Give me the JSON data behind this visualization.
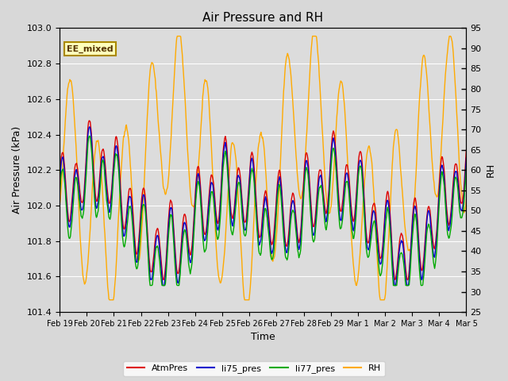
{
  "title": "Air Pressure and RH",
  "xlabel": "Time",
  "ylabel_left": "Air Pressure (kPa)",
  "ylabel_right": "RH",
  "ylim_left": [
    101.4,
    103.0
  ],
  "ylim_right": [
    25,
    95
  ],
  "yticks_left": [
    101.4,
    101.6,
    101.8,
    102.0,
    102.2,
    102.4,
    102.6,
    102.8,
    103.0
  ],
  "yticks_right": [
    25,
    30,
    35,
    40,
    45,
    50,
    55,
    60,
    65,
    70,
    75,
    80,
    85,
    90,
    95
  ],
  "xtick_labels": [
    "Feb 19",
    "Feb 20",
    "Feb 21",
    "Feb 22",
    "Feb 23",
    "Feb 24",
    "Feb 25",
    "Feb 26",
    "Feb 27",
    "Feb 28",
    "Feb 29",
    "Mar 1",
    "Mar 2",
    "Mar 3",
    "Mar 4",
    "Mar 5"
  ],
  "colors": {
    "AtmPres": "#dd0000",
    "li75_pres": "#0000cc",
    "li77_pres": "#00aa00",
    "RH": "#ffaa00"
  },
  "legend_label": "EE_mixed",
  "fig_bg": "#d8d8d8",
  "plot_bg": "#dcdcdc",
  "grid_color": "#ffffff"
}
